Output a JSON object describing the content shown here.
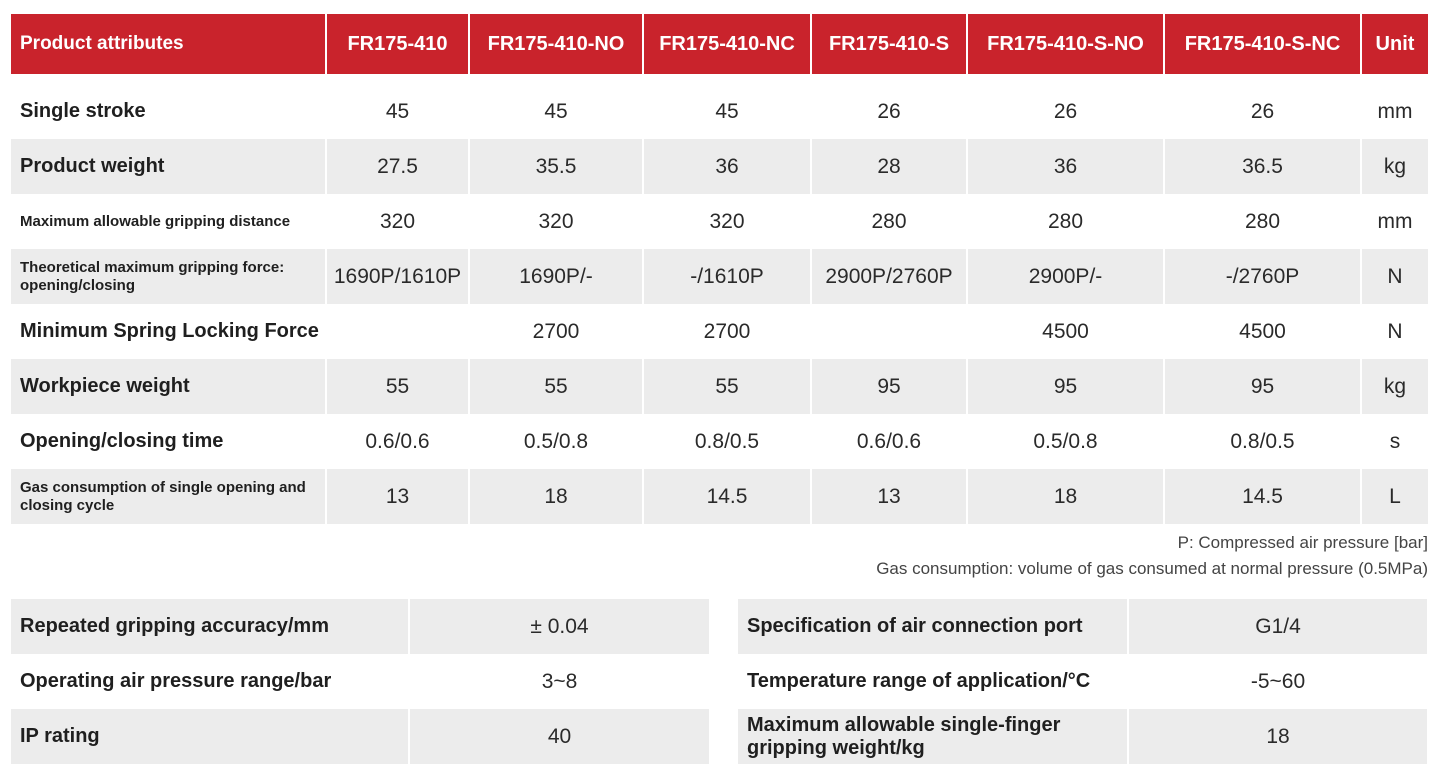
{
  "header": {
    "attr_label": "Product attributes",
    "models": [
      "FR175-410",
      "FR175-410-NO",
      "FR175-410-NC",
      "FR175-410-S",
      "FR175-410-S-NO",
      "FR175-410-S-NC"
    ],
    "unit_label": "Unit"
  },
  "rows": [
    {
      "label": "Single stroke",
      "values": [
        "45",
        "45",
        "45",
        "26",
        "26",
        "26"
      ],
      "unit": "mm"
    },
    {
      "label": "Product weight",
      "values": [
        "27.5",
        "35.5",
        "36",
        "28",
        "36",
        "36.5"
      ],
      "unit": "kg"
    },
    {
      "label": "Maximum allowable gripping distance",
      "values": [
        "320",
        "320",
        "320",
        "280",
        "280",
        "280"
      ],
      "unit": "mm"
    },
    {
      "label": "Theoretical maximum gripping force: opening/closing",
      "values": [
        "1690P/1610P",
        "1690P/-",
        "-/1610P",
        "2900P/2760P",
        "2900P/-",
        "-/2760P"
      ],
      "unit": "N"
    },
    {
      "label": "Minimum Spring Locking Force",
      "values": [
        "",
        "2700",
        "2700",
        "",
        "4500",
        "4500"
      ],
      "unit": "N"
    },
    {
      "label": "Workpiece weight",
      "values": [
        "55",
        "55",
        "55",
        "95",
        "95",
        "95"
      ],
      "unit": "kg"
    },
    {
      "label": "Opening/closing time",
      "values": [
        "0.6/0.6",
        "0.5/0.8",
        "0.8/0.5",
        "0.6/0.6",
        "0.5/0.8",
        "0.8/0.5"
      ],
      "unit": "s"
    },
    {
      "label": "Gas consumption of single opening and closing cycle",
      "values": [
        "13",
        "18",
        "14.5",
        "13",
        "18",
        "14.5"
      ],
      "unit": "L"
    }
  ],
  "notes": {
    "pressure": "P: Compressed air pressure [bar]",
    "gas": "Gas consumption: volume of gas consumed at normal pressure (0.5MPa)"
  },
  "left_specs": [
    {
      "label": "Repeated gripping accuracy/mm",
      "value": "± 0.04"
    },
    {
      "label": "Operating air pressure range/bar",
      "value": "3~8"
    },
    {
      "label": "IP rating",
      "value": "40"
    }
  ],
  "right_specs": [
    {
      "label": "Specification of air connection port",
      "value": "G1/4"
    },
    {
      "label": "Temperature range of application/°C",
      "value": "-5~60"
    },
    {
      "label": "Maximum allowable single-finger gripping weight/kg",
      "value": "18"
    }
  ],
  "colors": {
    "header_red": "#c9232c",
    "row_gray": "#ececec"
  }
}
